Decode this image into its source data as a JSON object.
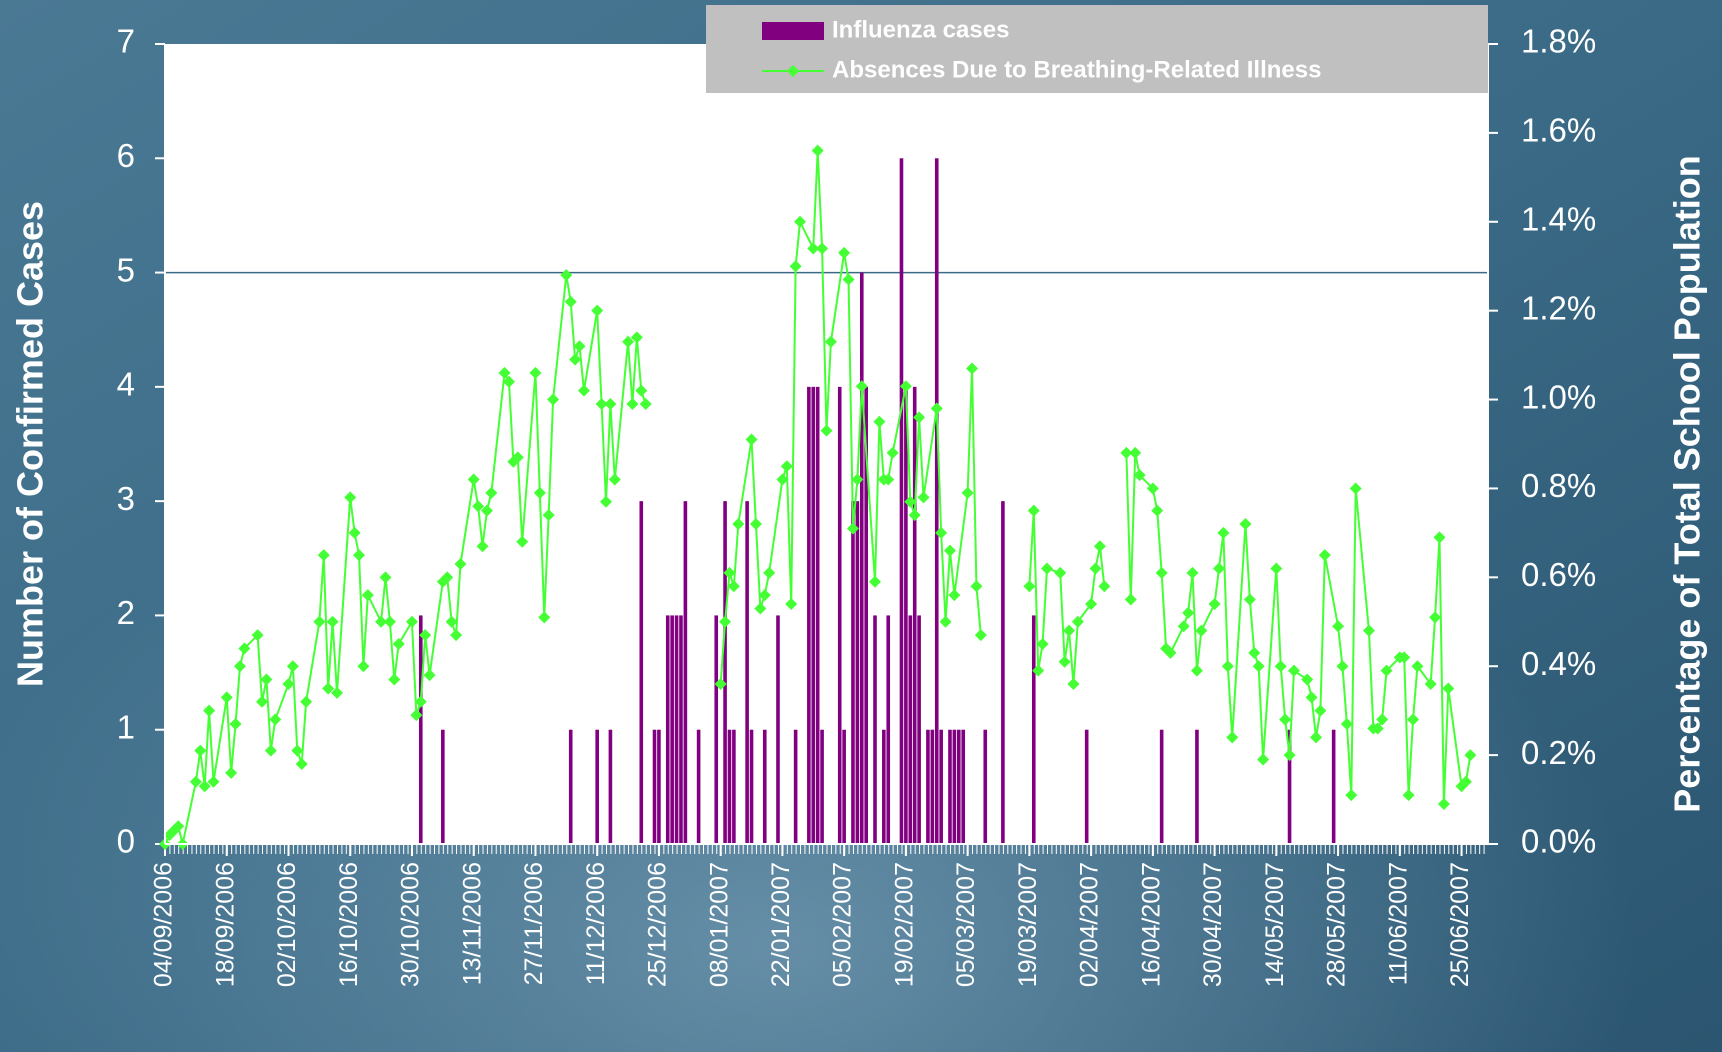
{
  "chart_data": {
    "type": "bar",
    "y_label": "Number of Confirmed Cases",
    "y2_label": "Percentage of Total School Population",
    "xlim": [
      "04/09/2006",
      "01/07/2007"
    ],
    "xticks": [
      "04/09/2006",
      "18/09/2006",
      "02/10/2006",
      "16/10/2006",
      "30/10/2006",
      "13/11/2006",
      "27/11/2006",
      "11/12/2006",
      "25/12/2006",
      "08/01/2007",
      "22/01/2007",
      "05/02/2007",
      "19/02/2007",
      "05/03/2007",
      "19/03/2007",
      "02/04/2007",
      "16/04/2007",
      "30/04/2007",
      "14/05/2007",
      "28/05/2007",
      "11/06/2007",
      "25/06/2007"
    ],
    "ylim": [
      0,
      7
    ],
    "yticks": [
      0,
      1,
      2,
      3,
      4,
      5,
      6,
      7
    ],
    "y2lim": [
      0,
      1.8
    ],
    "y2ticks": [
      {
        "value": 0,
        "label": "0.0%"
      },
      {
        "value": 0.2,
        "label": "0.2%"
      },
      {
        "value": 0.4,
        "label": "0.4%"
      },
      {
        "value": 0.6,
        "label": "0.6%"
      },
      {
        "value": 0.8,
        "label": "0.8%"
      },
      {
        "value": 1.0,
        "label": "1.0%"
      },
      {
        "value": 1.2,
        "label": "1.2%"
      },
      {
        "value": 1.4,
        "label": "1.4%"
      },
      {
        "value": 1.6,
        "label": "1.6%"
      },
      {
        "value": 1.8,
        "label": "1.8%"
      }
    ],
    "reference_line": 5,
    "legend": "top-right",
    "series": [
      {
        "name": "Influenza cases",
        "type": "bar",
        "color": "#800080",
        "x": [
          "01/11/2006",
          "06/11/2006",
          "05/12/2006",
          "11/12/2006",
          "14/12/2006",
          "21/12/2006",
          "24/12/2006",
          "25/12/2006",
          "27/12/2006",
          "28/12/2006",
          "29/12/2006",
          "30/12/2006",
          "31/12/2006",
          "03/01/2007",
          "07/01/2007",
          "09/01/2007",
          "10/01/2007",
          "11/01/2007",
          "14/01/2007",
          "15/01/2007",
          "18/01/2007",
          "21/01/2007",
          "25/01/2007",
          "28/01/2007",
          "29/01/2007",
          "30/01/2007",
          "31/01/2007",
          "04/02/2007",
          "05/02/2007",
          "07/02/2007",
          "08/02/2007",
          "09/02/2007",
          "10/02/2007",
          "12/02/2007",
          "14/02/2007",
          "15/02/2007",
          "18/02/2007",
          "19/02/2007",
          "20/02/2007",
          "21/02/2007",
          "22/02/2007",
          "24/02/2007",
          "25/02/2007",
          "26/02/2007",
          "27/02/2007",
          "01/03/2007",
          "02/03/2007",
          "03/03/2007",
          "04/03/2007",
          "09/03/2007",
          "13/03/2007",
          "20/03/2007",
          "01/04/2007",
          "18/04/2007",
          "26/04/2007",
          "17/05/2007",
          "27/05/2007"
        ],
        "values": [
          2,
          1,
          1,
          1,
          1,
          3,
          1,
          1,
          2,
          2,
          2,
          2,
          3,
          1,
          2,
          3,
          1,
          1,
          3,
          1,
          1,
          2,
          1,
          4,
          4,
          4,
          1,
          4,
          1,
          3,
          3,
          5,
          4,
          2,
          1,
          2,
          6,
          4,
          2,
          4,
          2,
          1,
          1,
          6,
          1,
          1,
          1,
          1,
          1,
          1,
          3,
          2,
          1,
          1,
          1,
          1,
          1
        ]
      },
      {
        "name": "Absences Due to Breathing-Related Illness",
        "type": "line",
        "axis": "y2",
        "color": "#44ff33",
        "x": [
          "04/09/2006",
          "05/09/2006",
          "06/09/2006",
          "07/09/2006",
          "08/09/2006",
          "11/09/2006",
          "12/09/2006",
          "13/09/2006",
          "14/09/2006",
          "15/09/2006",
          "18/09/2006",
          "19/09/2006",
          "20/09/2006",
          "21/09/2006",
          "22/09/2006",
          "25/09/2006",
          "26/09/2006",
          "27/09/2006",
          "28/09/2006",
          "29/09/2006",
          "02/10/2006",
          "03/10/2006",
          "04/10/2006",
          "05/10/2006",
          "06/10/2006",
          "09/10/2006",
          "10/10/2006",
          "11/10/2006",
          "12/10/2006",
          "13/10/2006",
          "16/10/2006",
          "17/10/2006",
          "18/10/2006",
          "19/10/2006",
          "20/10/2006",
          "23/10/2006",
          "24/10/2006",
          "25/10/2006",
          "26/10/2006",
          "27/10/2006",
          "30/10/2006",
          "31/10/2006",
          "01/11/2006",
          "02/11/2006",
          "03/11/2006",
          "06/11/2006",
          "07/11/2006",
          "08/11/2006",
          "09/11/2006",
          "10/11/2006",
          "13/11/2006",
          "14/11/2006",
          "15/11/2006",
          "16/11/2006",
          "17/11/2006",
          "20/11/2006",
          "21/11/2006",
          "22/11/2006",
          "23/11/2006",
          "24/11/2006",
          "27/11/2006",
          "28/11/2006",
          "29/11/2006",
          "30/11/2006",
          "01/12/2006",
          "04/12/2006",
          "05/12/2006",
          "06/12/2006",
          "07/12/2006",
          "08/12/2006",
          "11/12/2006",
          "12/12/2006",
          "13/12/2006",
          "14/12/2006",
          "15/12/2006",
          "18/12/2006",
          "19/12/2006",
          "20/12/2006",
          "21/12/2006",
          "22/12/2006",
          "01/01/2007",
          "08/01/2007",
          "09/01/2007",
          "10/01/2007",
          "11/01/2007",
          "12/01/2007",
          "15/01/2007",
          "16/01/2007",
          "17/01/2007",
          "18/01/2007",
          "19/01/2007",
          "22/01/2007",
          "23/01/2007",
          "24/01/2007",
          "25/01/2007",
          "26/01/2007",
          "29/01/2007",
          "30/01/2007",
          "31/01/2007",
          "01/02/2007",
          "02/02/2007",
          "05/02/2007",
          "06/02/2007",
          "07/02/2007",
          "08/02/2007",
          "09/02/2007",
          "12/02/2007",
          "13/02/2007",
          "14/02/2007",
          "15/02/2007",
          "16/02/2007",
          "19/02/2007",
          "20/02/2007",
          "21/02/2007",
          "22/02/2007",
          "23/02/2007",
          "26/02/2007",
          "27/02/2007",
          "28/02/2007",
          "01/03/2007",
          "02/03/2007",
          "05/03/2007",
          "06/03/2007",
          "07/03/2007",
          "08/03/2007",
          "12/03/2007",
          "19/03/2007",
          "20/03/2007",
          "21/03/2007",
          "22/03/2007",
          "23/03/2007",
          "26/03/2007",
          "27/03/2007",
          "28/03/2007",
          "29/03/2007",
          "30/03/2007",
          "02/04/2007",
          "03/04/2007",
          "04/04/2007",
          "05/04/2007",
          "06/04/2007",
          "10/04/2007",
          "11/04/2007",
          "12/04/2007",
          "13/04/2007",
          "16/04/2007",
          "17/04/2007",
          "18/04/2007",
          "19/04/2007",
          "20/04/2007",
          "23/04/2007",
          "24/04/2007",
          "25/04/2007",
          "26/04/2007",
          "27/04/2007",
          "30/04/2007",
          "01/05/2007",
          "02/05/2007",
          "03/05/2007",
          "04/05/2007",
          "07/05/2007",
          "08/05/2007",
          "09/05/2007",
          "10/05/2007",
          "11/05/2007",
          "14/05/2007",
          "15/05/2007",
          "16/05/2007",
          "17/05/2007",
          "18/05/2007",
          "21/05/2007",
          "22/05/2007",
          "23/05/2007",
          "24/05/2007",
          "25/05/2007",
          "28/05/2007",
          "29/05/2007",
          "30/05/2007",
          "31/05/2007",
          "01/06/2007",
          "04/06/2007",
          "05/06/2007",
          "06/06/2007",
          "07/06/2007",
          "08/06/2007",
          "11/06/2007",
          "12/06/2007",
          "13/06/2007",
          "14/06/2007",
          "15/06/2007",
          "18/06/2007",
          "19/06/2007",
          "20/06/2007",
          "21/06/2007",
          "22/06/2007",
          "25/06/2007",
          "26/06/2007",
          "27/06/2007"
        ],
        "values": [
          0.0,
          0.02,
          0.03,
          0.04,
          0.0,
          0.14,
          0.21,
          0.13,
          0.3,
          0.14,
          0.33,
          0.16,
          0.27,
          0.4,
          0.44,
          0.47,
          0.32,
          0.37,
          0.21,
          0.28,
          0.36,
          0.4,
          0.21,
          0.18,
          0.32,
          0.5,
          0.65,
          0.35,
          0.5,
          0.34,
          0.78,
          0.7,
          0.65,
          0.4,
          0.56,
          0.5,
          0.6,
          0.5,
          0.37,
          0.45,
          0.5,
          0.29,
          0.32,
          0.47,
          0.38,
          0.59,
          0.6,
          0.5,
          0.47,
          0.63,
          0.82,
          0.76,
          0.67,
          0.75,
          0.79,
          1.06,
          1.04,
          0.86,
          0.87,
          0.68,
          1.06,
          0.79,
          0.51,
          0.74,
          1.0,
          1.28,
          1.22,
          1.09,
          1.12,
          1.02,
          1.2,
          0.99,
          0.77,
          0.99,
          0.82,
          1.13,
          0.99,
          1.14,
          1.02,
          0.99,
          null,
          0.36,
          0.5,
          0.61,
          0.58,
          0.72,
          0.91,
          0.72,
          0.53,
          0.56,
          0.61,
          0.82,
          0.85,
          0.54,
          1.3,
          1.4,
          1.34,
          1.56,
          1.34,
          0.93,
          1.13,
          1.33,
          1.27,
          0.71,
          0.82,
          1.03,
          0.59,
          0.95,
          0.82,
          0.82,
          0.88,
          1.03,
          0.77,
          0.74,
          0.96,
          0.78,
          0.98,
          0.7,
          0.5,
          0.66,
          0.56,
          0.79,
          1.07,
          0.58,
          0.47,
          null,
          0.58,
          0.75,
          0.39,
          0.45,
          0.62,
          0.61,
          0.41,
          0.48,
          0.36,
          0.5,
          0.54,
          0.62,
          0.67,
          0.58,
          null,
          0.88,
          0.55,
          0.88,
          0.83,
          0.8,
          0.75,
          0.61,
          0.44,
          0.43,
          0.49,
          0.52,
          0.61,
          0.39,
          0.48,
          0.54,
          0.62,
          0.7,
          0.4,
          0.24,
          0.72,
          0.55,
          0.43,
          0.4,
          0.19,
          0.62,
          0.4,
          0.28,
          0.2,
          0.39,
          0.37,
          0.33,
          0.24,
          0.3,
          0.65,
          0.49,
          0.4,
          0.27,
          0.11,
          0.8,
          0.48,
          0.26,
          0.26,
          0.28,
          0.39,
          0.42,
          0.42,
          0.11,
          0.28,
          0.4,
          0.36,
          0.51,
          0.69,
          0.09,
          0.35,
          0.13,
          0.14,
          0.2
        ]
      }
    ]
  }
}
